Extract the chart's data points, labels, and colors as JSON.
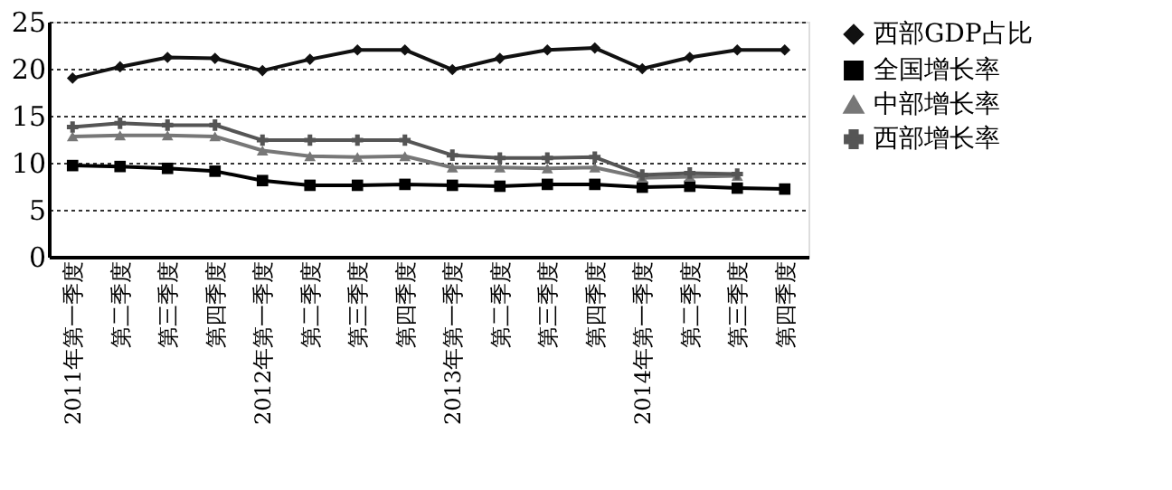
{
  "chart_data": {
    "type": "line",
    "categories": [
      "2011年第一季度",
      "第二季度",
      "第三季度",
      "第四季度",
      "2012年第一季度",
      "第二季度",
      "第三季度",
      "第四季度",
      "2013年第一季度",
      "第二季度",
      "第三季度",
      "第四季度",
      "2014年第一季度",
      "第二季度",
      "第三季度",
      "第四季度"
    ],
    "series": [
      {
        "name": "西部GDP占比",
        "color": "#111111",
        "marker": "diamond",
        "values": [
          19,
          20.2,
          21.2,
          21.1,
          19.8,
          21,
          22,
          22,
          19.9,
          21.1,
          22,
          22.2,
          20,
          21.2,
          22,
          22
        ]
      },
      {
        "name": "全国增长率",
        "color": "#000000",
        "marker": "square",
        "values": [
          9.7,
          9.6,
          9.4,
          9.1,
          8.1,
          7.6,
          7.6,
          7.7,
          7.6,
          7.5,
          7.7,
          7.7,
          7.4,
          7.5,
          7.3,
          7.2
        ]
      },
      {
        "name": "中部增长率",
        "color": "#777777",
        "marker": "triangle",
        "values": [
          12.8,
          12.9,
          12.9,
          12.8,
          11.3,
          10.7,
          10.6,
          10.7,
          9.5,
          9.5,
          9.4,
          9.5,
          8.4,
          8.5,
          8.6,
          null
        ]
      },
      {
        "name": "西部增长率",
        "color": "#555555",
        "marker": "cross",
        "values": [
          13.8,
          14.2,
          14.0,
          14.0,
          12.4,
          12.4,
          12.4,
          12.4,
          10.8,
          10.5,
          10.5,
          10.6,
          8.7,
          8.9,
          8.8,
          null
        ]
      }
    ],
    "ylim": [
      0,
      25
    ],
    "yticks": [
      0,
      5,
      10,
      15,
      20,
      25
    ],
    "grid": "y",
    "legend": "right",
    "line_style": "solid"
  }
}
